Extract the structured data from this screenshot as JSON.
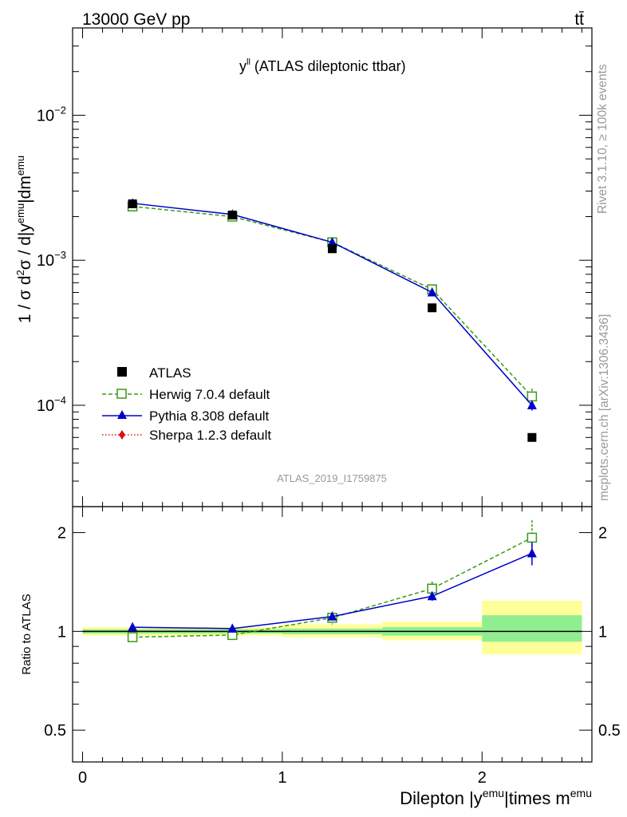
{
  "header": {
    "left": "13000 GeV pp",
    "right": "tt̄"
  },
  "side_labels": {
    "rivet": "Rivet 3.1.10, ≥ 100k events",
    "mcplots": "mcplots.cern.ch [arXiv:1306.3436]"
  },
  "chart_data": [
    {
      "type": "scatter",
      "title": "y^ll (ATLAS dileptonic ttbar)",
      "title_parts": {
        "main": "y",
        "sup": "ll",
        "rest": " (ATLAS dileptonic ttbar)"
      },
      "analysis_id": "ATLAS_2019_I1759875",
      "ylabel": "1 / σ d²σ / d|y^emu|dm^emu",
      "ylabel_parts": {
        "p1": "1 / σ d",
        "s1": "2",
        "p2": "σ / d|y",
        "s2": "emu",
        "p3": "|dm",
        "s3": "emu"
      },
      "y_scale": "log",
      "ylim": [
        2e-05,
        0.04
      ],
      "y_ticks": [
        {
          "value": 0.0001,
          "base": "10",
          "exp": "−4"
        },
        {
          "value": 0.001,
          "base": "10",
          "exp": "−3"
        },
        {
          "value": 0.01,
          "base": "10",
          "exp": "−2"
        }
      ],
      "xlim": [
        -0.05,
        2.55
      ],
      "legend_position": "bottom-left",
      "series": [
        {
          "name": "ATLAS",
          "color": "#000000",
          "marker": "square",
          "line": "none",
          "x": [
            0.25,
            0.75,
            1.25,
            1.75,
            2.25
          ],
          "y": [
            0.00245,
            0.00205,
            0.0012,
            0.00047,
            6e-05
          ]
        },
        {
          "name": "Herwig 7.0.4 default",
          "color": "#3a9a10",
          "marker": "open-square",
          "line": "dashed",
          "x": [
            0.25,
            0.75,
            1.25,
            1.75,
            2.25
          ],
          "y": [
            0.00235,
            0.002,
            0.00133,
            0.00063,
            0.000115
          ],
          "err": [
            5e-05,
            4e-05,
            3e-05,
            2e-05,
            1.5e-05
          ]
        },
        {
          "name": "Pythia 8.308 default",
          "color": "#0000cc",
          "marker": "triangle",
          "line": "solid",
          "x": [
            0.25,
            0.75,
            1.25,
            1.75,
            2.25
          ],
          "y": [
            0.00247,
            0.00207,
            0.00133,
            0.0006,
            0.0001
          ],
          "err": [
            4e-05,
            3e-05,
            3e-05,
            2e-05,
            8e-06
          ]
        },
        {
          "name": "Sherpa 1.2.3 default",
          "color": "#e01010",
          "marker": "diamond",
          "line": "dotted",
          "x": [],
          "y": []
        }
      ]
    },
    {
      "type": "line",
      "xlabel": "Dilepton |y^emu|times m^emu",
      "xlabel_parts": {
        "p1": "Dilepton |y",
        "s1": "emu",
        "p2": "|times m",
        "s2": "emu"
      },
      "ylabel": "Ratio to ATLAS",
      "y_scale": "log",
      "ylim": [
        0.4,
        2.4
      ],
      "y_ticks": [
        0.5,
        1,
        2
      ],
      "xlim": [
        -0.05,
        2.55
      ],
      "x_ticks": [
        0,
        1,
        2
      ],
      "uncertainty_bands": [
        {
          "x_range": [
            0,
            1
          ],
          "inner": [
            0.985,
            1.015
          ],
          "outer": [
            0.97,
            1.03
          ]
        },
        {
          "x_range": [
            1,
            1.5
          ],
          "inner": [
            0.98,
            1.02
          ],
          "outer": [
            0.96,
            1.05
          ]
        },
        {
          "x_range": [
            1.5,
            2
          ],
          "inner": [
            0.97,
            1.03
          ],
          "outer": [
            0.94,
            1.07
          ]
        },
        {
          "x_range": [
            2,
            2.5
          ],
          "inner": [
            0.93,
            1.12
          ],
          "outer": [
            0.85,
            1.24
          ]
        }
      ],
      "band_colors": {
        "inner": "#90ee90",
        "outer": "#ffff99"
      },
      "series": [
        {
          "name": "Herwig 7.0.4 default",
          "color": "#3a9a10",
          "marker": "open-square",
          "line": "dashed",
          "x": [
            0.25,
            0.75,
            1.25,
            1.75,
            2.25
          ],
          "y": [
            0.96,
            0.975,
            1.1,
            1.35,
            1.93
          ],
          "err": [
            0.03,
            0.03,
            0.05,
            0.07,
            0.25
          ]
        },
        {
          "name": "Pythia 8.308 default",
          "color": "#0000cc",
          "marker": "triangle",
          "line": "solid",
          "x": [
            0.25,
            0.75,
            1.25,
            1.75,
            2.25
          ],
          "y": [
            1.03,
            1.02,
            1.11,
            1.28,
            1.73
          ],
          "err": [
            0.015,
            0.012,
            0.03,
            0.04,
            0.14
          ]
        }
      ]
    }
  ]
}
